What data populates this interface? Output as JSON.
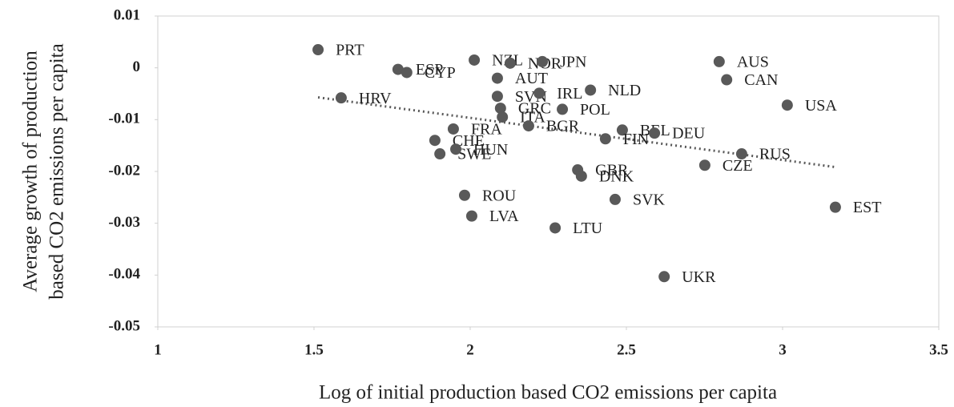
{
  "chart_data": {
    "type": "scatter",
    "x_label": "Log of initial production based CO2 emissions per capita",
    "y_label": [
      "Average growth of production",
      "based CO2 emissions per capita"
    ],
    "labels": [
      "PRT",
      "ESP",
      "CYP",
      "HRV",
      "NZL",
      "NOR",
      "JPN",
      "AUT",
      "SVN",
      "IRL",
      "NLD",
      "GRC",
      "POL",
      "ITA",
      "BGR",
      "FRA",
      "BEL",
      "DEU",
      "FIN",
      "CHE",
      "SWE",
      "HUN",
      "AUS",
      "CAN",
      "USA",
      "RUS",
      "CZE",
      "GBR",
      "DNK",
      "SVK",
      "EST",
      "ROU",
      "LVA",
      "LTU",
      "UKR"
    ],
    "x": [
      1.513,
      1.769,
      1.797,
      1.587,
      2.013,
      2.128,
      2.231,
      2.087,
      2.087,
      2.221,
      2.385,
      2.097,
      2.295,
      2.103,
      2.187,
      1.946,
      2.487,
      2.59,
      2.433,
      1.887,
      1.903,
      1.954,
      2.797,
      2.821,
      3.015,
      2.869,
      2.751,
      2.344,
      2.356,
      2.464,
      3.169,
      1.982,
      2.005,
      2.272,
      2.621
    ],
    "y": [
      0.0035,
      -0.0003,
      -0.0009,
      -0.0058,
      0.0015,
      0.0009,
      0.0012,
      -0.002,
      -0.0055,
      -0.0049,
      -0.0043,
      -0.0078,
      -0.008,
      -0.0095,
      -0.0112,
      -0.0118,
      -0.012,
      -0.0126,
      -0.0137,
      -0.014,
      -0.0166,
      -0.0157,
      0.0012,
      -0.0023,
      -0.0072,
      -0.0166,
      -0.0188,
      -0.0197,
      -0.0209,
      -0.0254,
      -0.0269,
      -0.0246,
      -0.0286,
      -0.0309,
      -0.0403
    ],
    "color": "#595959",
    "trendline": {
      "x": [
        1.513,
        3.174
      ],
      "y": [
        -0.0057,
        -0.0192
      ]
    },
    "xlim": [
      1,
      3.5
    ],
    "xticks": [
      1,
      1.5,
      2,
      2.5,
      3,
      3.5
    ],
    "ylim": [
      -0.05,
      0.01
    ],
    "yticks": [
      0.01,
      0,
      -0.01,
      -0.02,
      -0.03,
      -0.04,
      -0.05
    ]
  }
}
